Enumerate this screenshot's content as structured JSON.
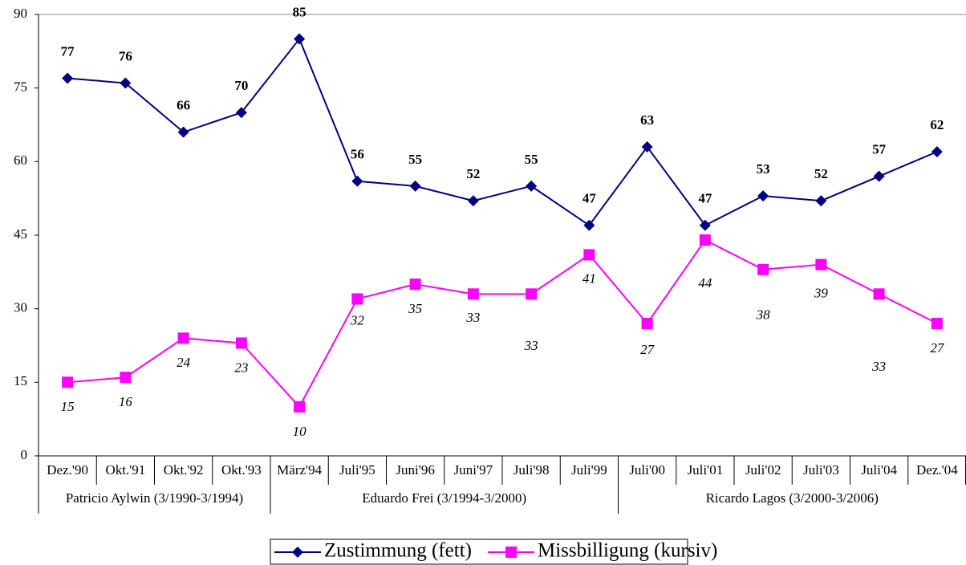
{
  "chart_data": {
    "type": "line",
    "categories": [
      "Dez.'90",
      "Okt.'91",
      "Okt.'92",
      "Okt.'93",
      "März'94",
      "Juli'95",
      "Juni'96",
      "Juni'97",
      "Juli'98",
      "Juli'99",
      "Juli'00",
      "Juli'01",
      "Juli'02",
      "Juli'03",
      "Juli'04",
      "Dez.'04"
    ],
    "groups": [
      "Patricio Aylwin (3/1990-3/1994)",
      "Eduardo Frei (3/1994-3/2000)",
      "Ricardo Lagos (3/2000-3/2006)"
    ],
    "series": [
      {
        "name": "Zustimmung (fett)",
        "color": "#000080",
        "marker": "diamond",
        "values": [
          77,
          76,
          66,
          70,
          85,
          56,
          55,
          52,
          55,
          47,
          63,
          47,
          53,
          52,
          57,
          62
        ]
      },
      {
        "name": "Missbilligung (kursiv)",
        "color": "#ff00ff",
        "marker": "square",
        "values": [
          15,
          16,
          24,
          23,
          10,
          32,
          35,
          33,
          33,
          41,
          27,
          44,
          38,
          39,
          33,
          27
        ]
      }
    ],
    "ylim": [
      0,
      90
    ],
    "yticks": [
      0,
      15,
      30,
      45,
      60,
      75,
      90
    ],
    "legend": "bottom"
  }
}
